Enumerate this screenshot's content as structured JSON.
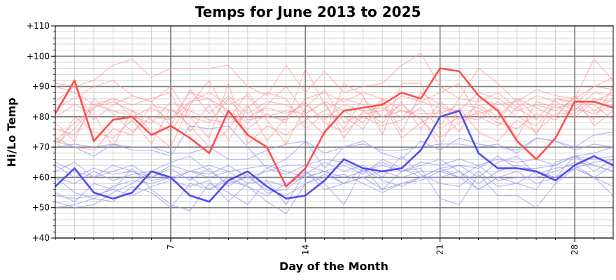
{
  "chart_data": {
    "type": "line",
    "title": "Temps for June 2013 to 2025",
    "xlabel": "Day of the Month",
    "ylabel": "Hi/Lo Temp",
    "xlim": [
      1,
      30
    ],
    "ylim": [
      40,
      110
    ],
    "x_ticks": [
      7,
      14,
      21,
      28
    ],
    "y_ticks": [
      40,
      50,
      60,
      70,
      80,
      90,
      100,
      110
    ],
    "y_tick_labels": [
      "+40",
      "+50",
      "+60",
      "+70",
      "+80",
      "+90",
      "+100",
      "+110"
    ],
    "grid": true,
    "legend": "none",
    "x": [
      1,
      2,
      3,
      4,
      5,
      6,
      7,
      8,
      9,
      10,
      11,
      12,
      13,
      14,
      15,
      16,
      17,
      18,
      19,
      20,
      21,
      22,
      23,
      24,
      25,
      26,
      27,
      28,
      29,
      30
    ],
    "series": [
      {
        "role": "highlight-high",
        "color": "#ff4444",
        "values": [
          81,
          92,
          72,
          79,
          80,
          74,
          77,
          73,
          68,
          82,
          74,
          70,
          57,
          63,
          75,
          82,
          83,
          84,
          88,
          86,
          96,
          95,
          87,
          82,
          72,
          66,
          73,
          85,
          85,
          83
        ]
      },
      {
        "role": "highlight-low",
        "color": "#4444ee",
        "values": [
          57,
          63,
          55,
          53,
          55,
          62,
          60,
          54,
          52,
          59,
          62,
          57,
          53,
          54,
          59,
          66,
          63,
          62,
          63,
          69,
          80,
          82,
          68,
          63,
          63,
          62,
          59,
          64,
          67,
          64
        ]
      },
      {
        "role": "background-high",
        "color": "#ff9999",
        "values": [
          90,
          88,
          84,
          86,
          80,
          78,
          85,
          82,
          79,
          78,
          80,
          83,
          81,
          84,
          79,
          84,
          82,
          83,
          80,
          85,
          83,
          82,
          88,
          86,
          82,
          84,
          82,
          86,
          90,
          89
        ]
      },
      {
        "role": "background-high",
        "color": "#ff9999",
        "values": [
          85,
          90,
          92,
          97,
          99,
          93,
          96,
          96,
          96,
          97,
          90,
          87,
          97,
          88,
          95,
          88,
          90,
          91,
          97,
          101,
          90,
          86,
          96,
          91,
          85,
          89,
          87,
          86,
          99,
          92
        ]
      },
      {
        "role": "background-high",
        "color": "#ff9999",
        "values": [
          72,
          78,
          83,
          85,
          82,
          75,
          70,
          84,
          92,
          80,
          76,
          81,
          78,
          96,
          84,
          76,
          86,
          80,
          84,
          79,
          73,
          78,
          82,
          78,
          76,
          81,
          79,
          83,
          81,
          84
        ]
      },
      {
        "role": "background-high",
        "color": "#ff9999",
        "values": [
          69,
          80,
          75,
          73,
          79,
          71,
          83,
          77,
          70,
          76,
          84,
          72,
          80,
          85,
          78,
          75,
          80,
          77,
          79,
          83,
          76,
          80,
          79,
          85,
          80,
          77,
          84,
          80,
          85,
          88
        ]
      },
      {
        "role": "background-high",
        "color": "#ff9999",
        "values": [
          78,
          72,
          86,
          81,
          75,
          80,
          79,
          88,
          86,
          82,
          78,
          84,
          90,
          81,
          85,
          82,
          78,
          86,
          75,
          88,
          84,
          79,
          84,
          80,
          86,
          83,
          80,
          87,
          82,
          86
        ]
      },
      {
        "role": "background-high",
        "color": "#ff9999",
        "values": [
          73,
          70,
          69,
          76,
          74,
          84,
          82,
          80,
          73,
          91,
          71,
          77,
          74,
          79,
          82,
          86,
          84,
          80,
          82,
          80,
          70,
          83,
          75,
          72,
          79,
          75,
          81,
          81,
          86,
          85
        ]
      },
      {
        "role": "background-high",
        "color": "#ff9999",
        "values": [
          80,
          84,
          81,
          70,
          82,
          79,
          75,
          85,
          88,
          84,
          87,
          79,
          71,
          83,
          89,
          78,
          81,
          82,
          87,
          85,
          88,
          91,
          80,
          77,
          83,
          79,
          86,
          84,
          79,
          90
        ]
      },
      {
        "role": "background-high",
        "color": "#ff9999",
        "values": [
          91,
          90,
          79,
          84,
          87,
          85,
          77,
          89,
          81,
          87,
          81,
          85,
          84,
          80,
          74,
          91,
          87,
          74,
          91,
          91,
          77,
          86,
          85,
          88,
          83,
          87,
          85,
          82,
          88,
          87
        ]
      },
      {
        "role": "background-high",
        "color": "#ff9999",
        "values": [
          76,
          74,
          83,
          86,
          84,
          86,
          88,
          75,
          84,
          72,
          83,
          88,
          86,
          76,
          81,
          80,
          76,
          85,
          73,
          78,
          82,
          75,
          86,
          84,
          85,
          74,
          86,
          85,
          84,
          79
        ]
      },
      {
        "role": "background-high",
        "color": "#ff9999",
        "values": [
          83,
          86,
          90,
          92,
          87,
          85,
          90,
          80,
          78,
          86,
          79,
          80,
          79,
          86,
          88,
          85,
          88,
          86,
          82,
          81,
          81,
          84,
          83,
          79,
          86,
          80,
          80,
          87,
          77,
          82
        ]
      },
      {
        "role": "background-high",
        "color": "#ff9999",
        "values": [
          71,
          76,
          84,
          82,
          80,
          83,
          79,
          85,
          86,
          79,
          88,
          80,
          82,
          81,
          85,
          73,
          82,
          78,
          85,
          76,
          85,
          80,
          81,
          83,
          73,
          85,
          83,
          84,
          90,
          93
        ]
      },
      {
        "role": "background-low",
        "color": "#9999ee",
        "values": [
          60,
          55,
          53,
          57,
          59,
          58,
          60,
          60,
          56,
          59,
          57,
          54,
          58,
          60,
          62,
          58,
          60,
          62,
          60,
          62,
          62,
          60,
          64,
          59,
          60,
          60,
          62,
          65,
          64,
          62
        ]
      },
      {
        "role": "background-low",
        "color": "#9999ee",
        "values": [
          72,
          70,
          67,
          71,
          69,
          69,
          67,
          77,
          76,
          77,
          70,
          63,
          66,
          72,
          63,
          70,
          72,
          68,
          66,
          72,
          69,
          73,
          71,
          70,
          69,
          73,
          72,
          70,
          74,
          75
        ]
      },
      {
        "role": "background-low",
        "color": "#9999ee",
        "values": [
          55,
          52,
          58,
          56,
          63,
          56,
          51,
          49,
          58,
          55,
          51,
          59,
          51,
          62,
          58,
          51,
          63,
          56,
          62,
          63,
          53,
          51,
          61,
          54,
          54,
          50,
          58,
          63,
          60,
          57
        ]
      },
      {
        "role": "background-low",
        "color": "#9999ee",
        "values": [
          65,
          62,
          60,
          64,
          62,
          60,
          63,
          59,
          63,
          57,
          61,
          55,
          56,
          61,
          65,
          62,
          64,
          60,
          67,
          61,
          58,
          57,
          62,
          57,
          58,
          56,
          65,
          67,
          62,
          66
        ]
      },
      {
        "role": "background-low",
        "color": "#9999ee",
        "values": [
          52,
          50,
          51,
          55,
          58,
          62,
          65,
          67,
          62,
          58,
          60,
          56,
          54,
          58,
          60,
          61,
          58,
          55,
          58,
          60,
          63,
          60,
          56,
          60,
          58,
          62,
          60,
          63,
          60,
          64
        ]
      },
      {
        "role": "background-low",
        "color": "#9999ee",
        "values": [
          60,
          58,
          62,
          59,
          61,
          62,
          59,
          62,
          60,
          62,
          58,
          63,
          61,
          64,
          62,
          64,
          61,
          66,
          63,
          60,
          63,
          64,
          63,
          67,
          63,
          63,
          64,
          67,
          66,
          67
        ]
      },
      {
        "role": "background-low",
        "color": "#9999ee",
        "values": [
          64,
          60,
          63,
          61,
          62,
          59,
          60,
          62,
          64,
          62,
          63,
          64,
          62,
          60,
          62,
          60,
          62,
          65,
          62,
          64,
          66,
          62,
          58,
          62,
          64,
          62,
          60,
          63,
          65,
          66
        ]
      },
      {
        "role": "background-low",
        "color": "#9999ee",
        "values": [
          54,
          53,
          54,
          56,
          54,
          57,
          59,
          57,
          59,
          52,
          58,
          59,
          57,
          62,
          56,
          58,
          60,
          56,
          58,
          59,
          62,
          64,
          60,
          65,
          67,
          61,
          63,
          64,
          60,
          54
        ]
      },
      {
        "role": "background-low",
        "color": "#9999ee",
        "values": [
          50,
          51,
          53,
          52,
          57,
          55,
          50,
          58,
          56,
          60,
          57,
          52,
          48,
          58,
          61,
          58,
          63,
          59,
          57,
          60,
          60,
          62,
          56,
          60,
          62,
          58,
          60,
          67,
          64,
          62
        ]
      },
      {
        "role": "background-low",
        "color": "#9999ee",
        "values": [
          62,
          65,
          60,
          62,
          64,
          60,
          64,
          62,
          61,
          64,
          60,
          62,
          64,
          64,
          66,
          65,
          62,
          64,
          62,
          65,
          64,
          66,
          64,
          66,
          65,
          66,
          64,
          67,
          68,
          70
        ]
      },
      {
        "role": "background-low",
        "color": "#9999ee",
        "values": [
          70,
          71,
          70,
          71,
          70,
          70,
          68,
          68,
          70,
          66,
          66,
          69,
          71,
          72,
          68,
          70,
          71,
          69,
          69,
          70,
          71,
          71,
          70,
          71,
          68,
          73,
          72,
          69,
          71,
          70
        ]
      }
    ]
  }
}
